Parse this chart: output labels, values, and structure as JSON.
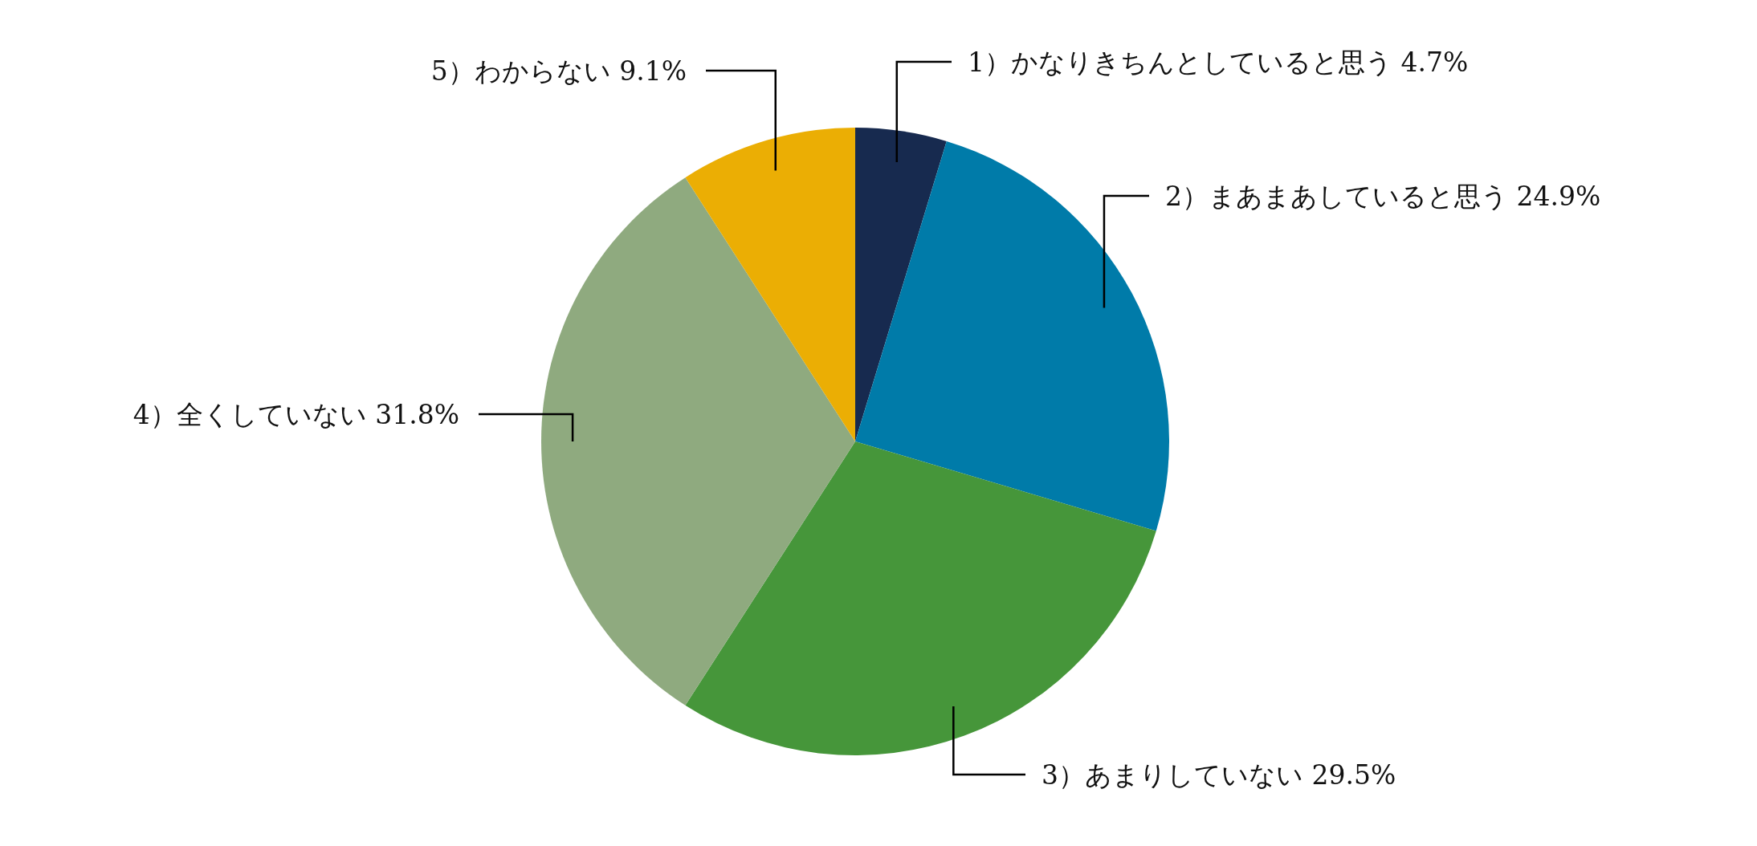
{
  "chart_data": {
    "type": "pie",
    "categories": [
      "1）かなりきちんとしていると思う",
      "2）まあまあしていると思う",
      "3）あまりしていない",
      "4）全くしていない",
      "5）わからない"
    ],
    "values": [
      4.7,
      24.9,
      29.5,
      31.8,
      9.1
    ],
    "value_labels": [
      "4.7%",
      "24.9%",
      "29.5%",
      "31.8%",
      "9.1%"
    ],
    "colors": [
      "#172a4f",
      "#007ba9",
      "#46963a",
      "#8faa7f",
      "#ebae04"
    ],
    "legend": false
  }
}
